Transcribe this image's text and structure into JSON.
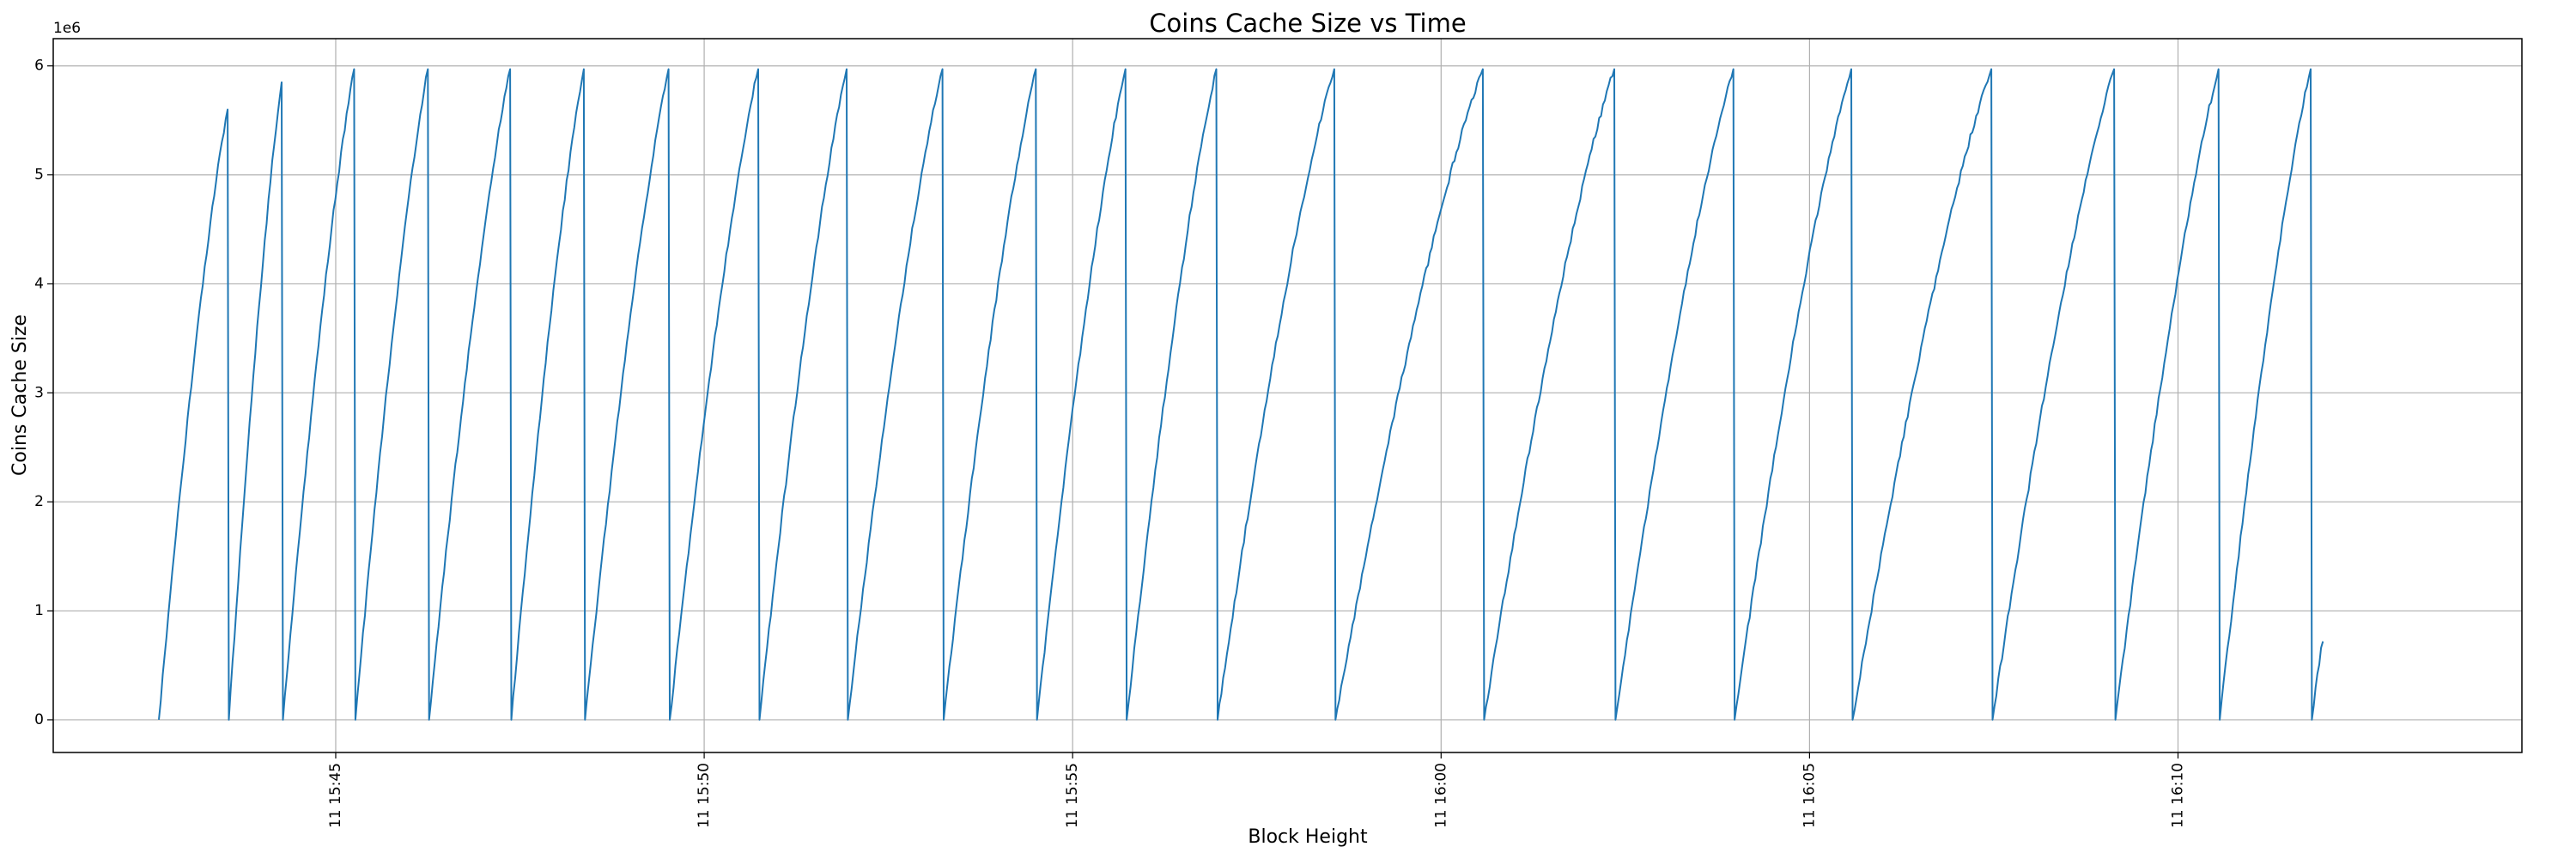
{
  "chart_data": {
    "type": "line",
    "title": "Coins Cache Size vs Time",
    "xlabel": "Block Height",
    "ylabel": "Coins Cache Size",
    "y_multiplier": "1e6",
    "grid": true,
    "line_color": "#1f77b4",
    "xlim": [
      "15:41:10",
      "16:14:40"
    ],
    "ylim": [
      -300000,
      6250000
    ],
    "x_ticks": [
      {
        "value": "15:45",
        "label": "11 15:45"
      },
      {
        "value": "15:50",
        "label": "11 15:50"
      },
      {
        "value": "15:55",
        "label": "11 15:55"
      },
      {
        "value": "16:00",
        "label": "11 16:00"
      },
      {
        "value": "16:05",
        "label": "11 16:05"
      },
      {
        "value": "16:10",
        "label": "11 16:10"
      }
    ],
    "y_ticks": [
      {
        "value": 0,
        "label": "0"
      },
      {
        "value": 1000000,
        "label": "1"
      },
      {
        "value": 2000000,
        "label": "2"
      },
      {
        "value": 3000000,
        "label": "3"
      },
      {
        "value": 4000000,
        "label": "4"
      },
      {
        "value": 5000000,
        "label": "5"
      },
      {
        "value": 6000000,
        "label": "6"
      }
    ],
    "series": [
      {
        "x": [
          "15:42:36",
          "15:43:32",
          "15:43:33",
          "15:44:16",
          "15:44:17",
          "15:45:15",
          "15:45:16",
          "15:46:15",
          "15:46:16",
          "15:47:22",
          "15:47:23",
          "15:48:22",
          "15:48:23",
          "15:49:31",
          "15:49:32",
          "15:50:44",
          "15:50:45",
          "15:51:56",
          "15:51:57",
          "15:53:14",
          "15:53:15",
          "15:54:30",
          "15:54:31",
          "15:55:43",
          "15:55:44",
          "15:56:57",
          "15:56:58",
          "15:58:33",
          "15:58:34",
          "16:00:34",
          "16:00:35",
          "16:02:21",
          "16:02:22",
          "16:03:58",
          "16:03:59",
          "16:05:34",
          "16:05:35",
          "16:07:28",
          "16:07:29",
          "16:09:08",
          "16:09:09",
          "16:10:33",
          "16:10:34",
          "16:11:48",
          "16:11:49",
          "16:11:58"
        ],
        "y": [
          0,
          5600000,
          0,
          5850000,
          0,
          5970000,
          0,
          5970000,
          0,
          5970000,
          0,
          5970000,
          0,
          5970000,
          0,
          5970000,
          0,
          5970000,
          0,
          5970000,
          0,
          5970000,
          0,
          5970000,
          0,
          5970000,
          0,
          5970000,
          0,
          5970000,
          0,
          5970000,
          0,
          5970000,
          0,
          5970000,
          0,
          5970000,
          0,
          5970000,
          0,
          5970000,
          0,
          5970000,
          0,
          720000
        ]
      }
    ]
  }
}
